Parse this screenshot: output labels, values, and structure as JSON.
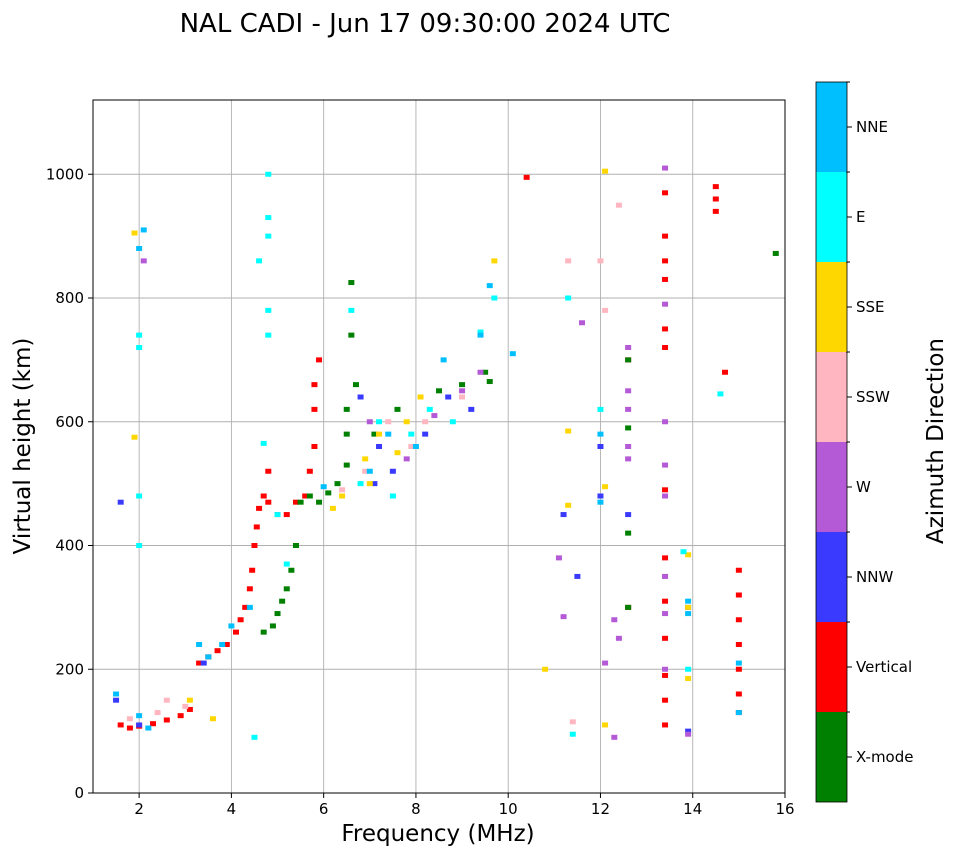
{
  "chart_data": {
    "type": "scatter",
    "title": "NAL CADI - Jun 17 09:30:00 2024 UTC",
    "xlabel": "Frequency (MHz)",
    "ylabel": "Virtual height (km)",
    "xlim": [
      1,
      16
    ],
    "ylim": [
      0,
      1120
    ],
    "xticks": [
      2,
      4,
      6,
      8,
      10,
      12,
      14,
      16
    ],
    "yticks": [
      0,
      200,
      400,
      600,
      800,
      1000
    ],
    "grid": true,
    "colorbar": {
      "label": "Azimuth Direction",
      "categories": [
        {
          "name": "X-mode",
          "color": "#008000"
        },
        {
          "name": "Vertical",
          "color": "#ff0000"
        },
        {
          "name": "NNW",
          "color": "#3a3aff"
        },
        {
          "name": "W",
          "color": "#b55ad6"
        },
        {
          "name": "SSW",
          "color": "#ffb6c1"
        },
        {
          "name": "SSE",
          "color": "#ffd700"
        },
        {
          "name": "E",
          "color": "#00ffff"
        },
        {
          "name": "NNE",
          "color": "#00bfff"
        }
      ]
    },
    "series": [
      {
        "name": "Vertical",
        "points": [
          [
            1.6,
            110
          ],
          [
            1.8,
            105
          ],
          [
            2.0,
            108
          ],
          [
            2.3,
            112
          ],
          [
            2.6,
            118
          ],
          [
            2.9,
            125
          ],
          [
            3.1,
            135
          ],
          [
            3.3,
            210
          ],
          [
            3.5,
            220
          ],
          [
            3.7,
            230
          ],
          [
            3.9,
            240
          ],
          [
            4.1,
            260
          ],
          [
            4.2,
            280
          ],
          [
            4.3,
            300
          ],
          [
            4.4,
            330
          ],
          [
            4.45,
            360
          ],
          [
            4.5,
            400
          ],
          [
            4.55,
            430
          ],
          [
            4.6,
            460
          ],
          [
            4.8,
            470
          ],
          [
            5.0,
            450
          ],
          [
            5.2,
            450
          ],
          [
            5.4,
            470
          ],
          [
            5.6,
            480
          ],
          [
            5.7,
            520
          ],
          [
            5.8,
            560
          ],
          [
            5.8,
            620
          ],
          [
            5.8,
            660
          ],
          [
            5.9,
            700
          ],
          [
            4.8,
            520
          ],
          [
            4.7,
            480
          ],
          [
            14.5,
            980
          ],
          [
            14.5,
            960
          ],
          [
            14.5,
            940
          ],
          [
            15.0,
            360
          ],
          [
            15.0,
            320
          ],
          [
            15.0,
            280
          ],
          [
            15.0,
            240
          ],
          [
            15.0,
            200
          ],
          [
            15.0,
            160
          ],
          [
            15.0,
            130
          ],
          [
            13.4,
            970
          ],
          [
            13.4,
            900
          ],
          [
            13.4,
            860
          ],
          [
            13.4,
            830
          ],
          [
            13.4,
            750
          ],
          [
            13.4,
            720
          ],
          [
            13.4,
            490
          ],
          [
            13.4,
            380
          ],
          [
            13.4,
            310
          ],
          [
            13.4,
            250
          ],
          [
            13.4,
            190
          ],
          [
            13.4,
            150
          ],
          [
            13.4,
            110
          ],
          [
            14.7,
            680
          ],
          [
            10.4,
            995
          ],
          [
            12.6,
            300
          ],
          [
            12.6,
            700
          ]
        ]
      },
      {
        "name": "X-mode",
        "points": [
          [
            4.7,
            260
          ],
          [
            4.9,
            270
          ],
          [
            5.0,
            290
          ],
          [
            5.1,
            310
          ],
          [
            5.2,
            330
          ],
          [
            5.3,
            360
          ],
          [
            5.4,
            400
          ],
          [
            5.5,
            470
          ],
          [
            5.7,
            480
          ],
          [
            5.9,
            470
          ],
          [
            6.1,
            485
          ],
          [
            6.3,
            500
          ],
          [
            6.5,
            530
          ],
          [
            6.5,
            580
          ],
          [
            6.5,
            620
          ],
          [
            6.7,
            660
          ],
          [
            7.1,
            580
          ],
          [
            7.6,
            620
          ],
          [
            8.5,
            650
          ],
          [
            9.0,
            660
          ],
          [
            9.5,
            680
          ],
          [
            9.6,
            665
          ],
          [
            12.6,
            700
          ],
          [
            12.6,
            590
          ],
          [
            12.6,
            420
          ],
          [
            12.6,
            300
          ],
          [
            15.8,
            872
          ],
          [
            6.6,
            825
          ],
          [
            6.6,
            740
          ]
        ]
      },
      {
        "name": "NNW",
        "points": [
          [
            1.5,
            150
          ],
          [
            2.0,
            110
          ],
          [
            3.4,
            210
          ],
          [
            6.8,
            640
          ],
          [
            7.1,
            500
          ],
          [
            7.2,
            560
          ],
          [
            7.5,
            520
          ],
          [
            8.2,
            580
          ],
          [
            8.7,
            640
          ],
          [
            9.2,
            620
          ],
          [
            11.2,
            450
          ],
          [
            11.5,
            350
          ],
          [
            12.0,
            480
          ],
          [
            12.0,
            560
          ],
          [
            12.6,
            450
          ],
          [
            13.9,
            300
          ],
          [
            13.9,
            100
          ],
          [
            1.6,
            470
          ]
        ]
      },
      {
        "name": "W",
        "points": [
          [
            2.1,
            860
          ],
          [
            7.0,
            600
          ],
          [
            7.8,
            540
          ],
          [
            8.4,
            610
          ],
          [
            9.0,
            650
          ],
          [
            9.4,
            680
          ],
          [
            11.1,
            380
          ],
          [
            11.2,
            285
          ],
          [
            11.6,
            760
          ],
          [
            12.1,
            210
          ],
          [
            12.3,
            280
          ],
          [
            12.4,
            250
          ],
          [
            12.6,
            720
          ],
          [
            12.6,
            650
          ],
          [
            12.6,
            620
          ],
          [
            12.6,
            560
          ],
          [
            12.6,
            540
          ],
          [
            13.4,
            1010
          ],
          [
            13.4,
            790
          ],
          [
            13.4,
            600
          ],
          [
            13.4,
            530
          ],
          [
            13.4,
            480
          ],
          [
            13.4,
            350
          ],
          [
            13.4,
            290
          ],
          [
            13.4,
            200
          ],
          [
            13.9,
            95
          ],
          [
            12.3,
            90
          ]
        ]
      },
      {
        "name": "SSW",
        "points": [
          [
            1.8,
            120
          ],
          [
            2.4,
            130
          ],
          [
            2.6,
            150
          ],
          [
            3.0,
            140
          ],
          [
            6.4,
            490
          ],
          [
            6.9,
            520
          ],
          [
            7.4,
            600
          ],
          [
            7.9,
            560
          ],
          [
            8.2,
            600
          ],
          [
            9.0,
            640
          ],
          [
            11.4,
            115
          ],
          [
            12.1,
            780
          ],
          [
            12.4,
            950
          ],
          [
            12.0,
            860
          ],
          [
            11.3,
            860
          ]
        ]
      },
      {
        "name": "SSE",
        "points": [
          [
            1.9,
            905
          ],
          [
            1.9,
            575
          ],
          [
            3.1,
            150
          ],
          [
            3.6,
            120
          ],
          [
            6.2,
            460
          ],
          [
            6.4,
            480
          ],
          [
            6.9,
            540
          ],
          [
            7.0,
            500
          ],
          [
            7.2,
            580
          ],
          [
            7.6,
            550
          ],
          [
            7.8,
            600
          ],
          [
            8.1,
            640
          ],
          [
            9.7,
            860
          ],
          [
            10.8,
            200
          ],
          [
            11.3,
            585
          ],
          [
            11.3,
            465
          ],
          [
            12.1,
            1005
          ],
          [
            12.1,
            495
          ],
          [
            12.1,
            110
          ],
          [
            13.9,
            385
          ],
          [
            13.9,
            300
          ],
          [
            13.9,
            185
          ]
        ]
      },
      {
        "name": "E",
        "points": [
          [
            2.0,
            740
          ],
          [
            2.0,
            720
          ],
          [
            2.0,
            480
          ],
          [
            2.0,
            400
          ],
          [
            4.8,
            1000
          ],
          [
            4.8,
            930
          ],
          [
            4.8,
            900
          ],
          [
            4.8,
            780
          ],
          [
            4.8,
            740
          ],
          [
            4.6,
            860
          ],
          [
            4.7,
            565
          ],
          [
            5.0,
            450
          ],
          [
            5.2,
            370
          ],
          [
            6.6,
            780
          ],
          [
            6.8,
            500
          ],
          [
            7.2,
            600
          ],
          [
            7.5,
            480
          ],
          [
            7.9,
            580
          ],
          [
            8.3,
            620
          ],
          [
            8.8,
            600
          ],
          [
            9.4,
            745
          ],
          [
            9.7,
            800
          ],
          [
            11.3,
            800
          ],
          [
            11.4,
            95
          ],
          [
            12.0,
            620
          ],
          [
            13.8,
            390
          ],
          [
            13.9,
            200
          ],
          [
            14.6,
            645
          ],
          [
            4.5,
            90
          ]
        ]
      },
      {
        "name": "NNE",
        "points": [
          [
            1.5,
            160
          ],
          [
            2.0,
            125
          ],
          [
            2.0,
            880
          ],
          [
            2.1,
            910
          ],
          [
            2.2,
            105
          ],
          [
            3.3,
            240
          ],
          [
            3.5,
            220
          ],
          [
            3.8,
            240
          ],
          [
            4.0,
            270
          ],
          [
            4.4,
            300
          ],
          [
            6.0,
            495
          ],
          [
            7.0,
            520
          ],
          [
            7.4,
            580
          ],
          [
            8.0,
            560
          ],
          [
            8.6,
            700
          ],
          [
            9.4,
            740
          ],
          [
            9.6,
            820
          ],
          [
            10.1,
            710
          ],
          [
            12.0,
            580
          ],
          [
            12.0,
            470
          ],
          [
            13.9,
            310
          ],
          [
            13.9,
            290
          ],
          [
            15.0,
            130
          ],
          [
            15.0,
            210
          ]
        ]
      }
    ]
  }
}
